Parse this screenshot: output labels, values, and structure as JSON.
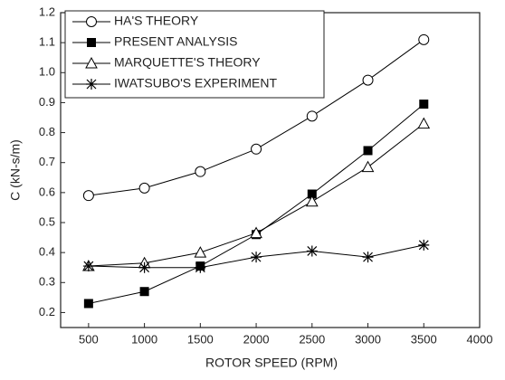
{
  "chart_data": {
    "type": "line",
    "x_label": "ROTOR SPEED (RPM)",
    "y_label": "C (kN-s/m)",
    "x": [
      500,
      1000,
      1500,
      2000,
      2500,
      3000,
      3500
    ],
    "series": [
      {
        "name": "HA'S THEORY",
        "color": "#000000",
        "marker": "circle-open",
        "values": [
          0.59,
          0.615,
          0.67,
          0.745,
          0.855,
          0.975,
          1.11
        ]
      },
      {
        "name": "PRESENT ANALYSIS",
        "color": "#000000",
        "marker": "square",
        "values": [
          0.23,
          0.27,
          0.355,
          0.46,
          0.595,
          0.74,
          0.895
        ]
      },
      {
        "name": "MARQUETTE'S THEORY",
        "color": "#000000",
        "marker": "triangle-open",
        "values": [
          0.355,
          0.365,
          0.4,
          0.465,
          0.57,
          0.685,
          0.83
        ]
      },
      {
        "name": "IWATSUBO'S EXPERIMENT",
        "color": "#000000",
        "marker": "asterisk",
        "values": [
          0.355,
          0.35,
          0.35,
          0.385,
          0.405,
          0.385,
          0.425
        ]
      }
    ],
    "xlim": [
      250,
      4000
    ],
    "xticks": [
      500,
      1000,
      1500,
      2000,
      2500,
      3000,
      3500,
      4000
    ],
    "ylim": [
      0.15,
      1.2
    ],
    "yticks": [
      0.2,
      0.3,
      0.4,
      0.5,
      0.6,
      0.7,
      0.8,
      0.9,
      {
        "value": 1.0,
        "label": "1.0"
      },
      1.1,
      1.2
    ],
    "legend": "top-left"
  }
}
